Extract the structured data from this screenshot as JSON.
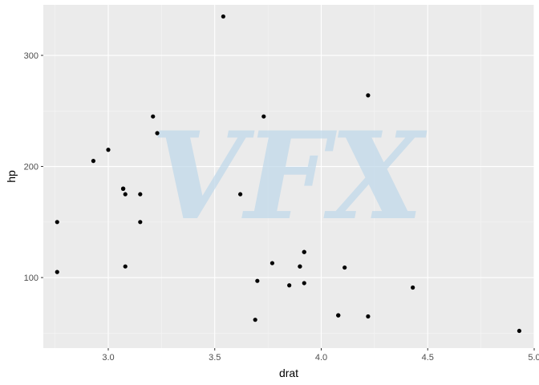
{
  "chart_data": {
    "type": "scatter",
    "title": "",
    "xlabel": "drat",
    "ylabel": "hp",
    "xlim": [
      2.695,
      5.0
    ],
    "ylim": [
      36.5,
      345.5
    ],
    "x_ticks": [
      3.0,
      3.5,
      4.0,
      4.5,
      5.0
    ],
    "x_tick_labels": [
      "3.0",
      "3.5",
      "4.0",
      "4.5",
      "5.0"
    ],
    "x_minor_ticks": [
      2.75,
      3.25,
      3.75,
      4.25,
      4.75
    ],
    "y_ticks": [
      100,
      200,
      300
    ],
    "y_tick_labels": [
      "100",
      "200",
      "300"
    ],
    "y_minor_ticks": [
      50,
      150,
      250
    ],
    "grid": true,
    "legend": "none",
    "points": [
      {
        "x": 2.76,
        "y": 150
      },
      {
        "x": 2.76,
        "y": 105
      },
      {
        "x": 2.93,
        "y": 205
      },
      {
        "x": 3.0,
        "y": 215
      },
      {
        "x": 3.07,
        "y": 180
      },
      {
        "x": 3.07,
        "y": 180
      },
      {
        "x": 3.07,
        "y": 180
      },
      {
        "x": 3.08,
        "y": 175
      },
      {
        "x": 3.08,
        "y": 110
      },
      {
        "x": 3.15,
        "y": 175
      },
      {
        "x": 3.15,
        "y": 150
      },
      {
        "x": 3.21,
        "y": 245
      },
      {
        "x": 3.23,
        "y": 230
      },
      {
        "x": 3.54,
        "y": 335
      },
      {
        "x": 3.62,
        "y": 175
      },
      {
        "x": 3.69,
        "y": 62
      },
      {
        "x": 3.7,
        "y": 97
      },
      {
        "x": 3.73,
        "y": 245
      },
      {
        "x": 3.77,
        "y": 113
      },
      {
        "x": 3.85,
        "y": 93
      },
      {
        "x": 3.9,
        "y": 110
      },
      {
        "x": 3.9,
        "y": 110
      },
      {
        "x": 3.92,
        "y": 123
      },
      {
        "x": 3.92,
        "y": 123
      },
      {
        "x": 3.92,
        "y": 95
      },
      {
        "x": 4.08,
        "y": 66
      },
      {
        "x": 4.08,
        "y": 66
      },
      {
        "x": 4.11,
        "y": 109
      },
      {
        "x": 4.22,
        "y": 264
      },
      {
        "x": 4.22,
        "y": 65
      },
      {
        "x": 4.43,
        "y": 91
      },
      {
        "x": 4.93,
        "y": 52
      }
    ],
    "point_color": "#000000",
    "panel_color": "#ebebeb",
    "grid_major_color": "#ffffff",
    "grid_minor_color": "#f5f5f5"
  },
  "watermark": {
    "text": "VFX",
    "color": "#bcd7ea"
  }
}
